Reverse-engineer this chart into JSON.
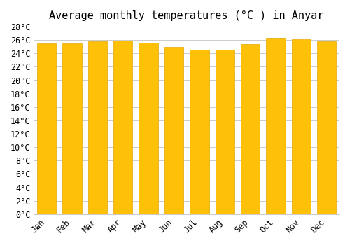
{
  "title": "Average monthly temperatures (°C ) in Anyar",
  "months": [
    "Jan",
    "Feb",
    "Mar",
    "Apr",
    "May",
    "Jun",
    "Jul",
    "Aug",
    "Sep",
    "Oct",
    "Nov",
    "Dec"
  ],
  "values": [
    25.5,
    25.5,
    25.8,
    25.9,
    25.6,
    25.0,
    24.6,
    24.6,
    25.4,
    26.2,
    26.1,
    25.8
  ],
  "bar_color_top": "#FFC107",
  "bar_color_bottom": "#FFB300",
  "bar_edge_color": "#E6A800",
  "background_color": "#FFFFFF",
  "grid_color": "#CCCCCC",
  "ylim": [
    0,
    28
  ],
  "ytick_step": 2,
  "title_fontsize": 11,
  "tick_fontsize": 8.5,
  "font_family": "monospace"
}
